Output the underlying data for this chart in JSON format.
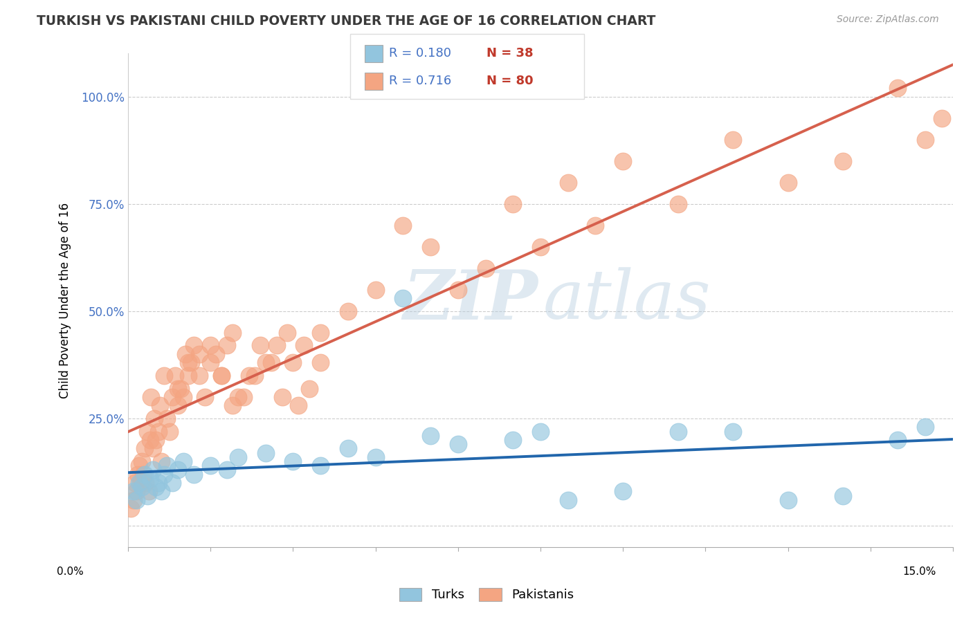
{
  "title": "TURKISH VS PAKISTANI CHILD POVERTY UNDER THE AGE OF 16 CORRELATION CHART",
  "source": "Source: ZipAtlas.com",
  "ylabel": "Child Poverty Under the Age of 16",
  "xlim": [
    0.0,
    15.0
  ],
  "ylim": [
    -0.05,
    1.1
  ],
  "yticks": [
    0.0,
    0.25,
    0.5,
    0.75,
    1.0
  ],
  "ytick_labels": [
    "",
    "25.0%",
    "50.0%",
    "75.0%",
    "100.0%"
  ],
  "turk_color": "#92c5de",
  "pakis_color": "#f4a582",
  "turk_line_color": "#2166ac",
  "pakis_line_color": "#d6604d",
  "watermark_zip": "ZIP",
  "watermark_atlas": "atlas",
  "background_color": "#ffffff",
  "legend_r_turks": "R = 0.180",
  "legend_n_turks": "N = 38",
  "legend_r_pakis": "R = 0.716",
  "legend_n_pakis": "N = 80",
  "turks_x": [
    0.1,
    0.15,
    0.2,
    0.25,
    0.3,
    0.35,
    0.4,
    0.45,
    0.5,
    0.55,
    0.6,
    0.65,
    0.7,
    0.8,
    0.9,
    1.0,
    1.2,
    1.5,
    1.8,
    2.0,
    2.5,
    3.0,
    3.5,
    4.0,
    4.5,
    5.0,
    5.5,
    6.0,
    7.0,
    7.5,
    8.0,
    9.0,
    10.0,
    11.0,
    12.0,
    13.0,
    14.0,
    14.5
  ],
  "turks_y": [
    0.08,
    0.06,
    0.1,
    0.09,
    0.12,
    0.07,
    0.11,
    0.13,
    0.09,
    0.1,
    0.08,
    0.12,
    0.14,
    0.1,
    0.13,
    0.15,
    0.12,
    0.14,
    0.13,
    0.16,
    0.17,
    0.15,
    0.14,
    0.18,
    0.16,
    0.53,
    0.21,
    0.19,
    0.2,
    0.22,
    0.06,
    0.08,
    0.22,
    0.22,
    0.06,
    0.07,
    0.2,
    0.23
  ],
  "pakis_x": [
    0.05,
    0.1,
    0.12,
    0.15,
    0.18,
    0.2,
    0.22,
    0.25,
    0.28,
    0.3,
    0.32,
    0.35,
    0.38,
    0.4,
    0.42,
    0.45,
    0.48,
    0.5,
    0.55,
    0.58,
    0.6,
    0.65,
    0.7,
    0.75,
    0.8,
    0.85,
    0.9,
    0.95,
    1.0,
    1.05,
    1.1,
    1.15,
    1.2,
    1.3,
    1.4,
    1.5,
    1.6,
    1.7,
    1.8,
    1.9,
    2.0,
    2.2,
    2.4,
    2.6,
    2.8,
    3.0,
    3.2,
    3.5,
    4.0,
    4.5,
    5.0,
    5.5,
    6.0,
    6.5,
    7.0,
    7.5,
    8.0,
    8.5,
    9.0,
    10.0,
    11.0,
    12.0,
    13.0,
    14.0,
    14.5,
    14.8,
    3.5,
    3.3,
    3.1,
    2.9,
    2.7,
    2.5,
    2.3,
    2.1,
    1.9,
    1.7,
    1.5,
    1.3,
    1.1,
    0.9
  ],
  "pakis_y": [
    0.04,
    0.06,
    0.1,
    0.08,
    0.12,
    0.14,
    0.1,
    0.15,
    0.12,
    0.18,
    0.1,
    0.22,
    0.08,
    0.2,
    0.3,
    0.18,
    0.25,
    0.2,
    0.22,
    0.28,
    0.15,
    0.35,
    0.25,
    0.22,
    0.3,
    0.35,
    0.28,
    0.32,
    0.3,
    0.4,
    0.35,
    0.38,
    0.42,
    0.35,
    0.3,
    0.38,
    0.4,
    0.35,
    0.42,
    0.45,
    0.3,
    0.35,
    0.42,
    0.38,
    0.3,
    0.38,
    0.42,
    0.45,
    0.5,
    0.55,
    0.7,
    0.65,
    0.55,
    0.6,
    0.75,
    0.65,
    0.8,
    0.7,
    0.85,
    0.75,
    0.9,
    0.8,
    0.85,
    1.02,
    0.9,
    0.95,
    0.38,
    0.32,
    0.28,
    0.45,
    0.42,
    0.38,
    0.35,
    0.3,
    0.28,
    0.35,
    0.42,
    0.4,
    0.38,
    0.32
  ]
}
